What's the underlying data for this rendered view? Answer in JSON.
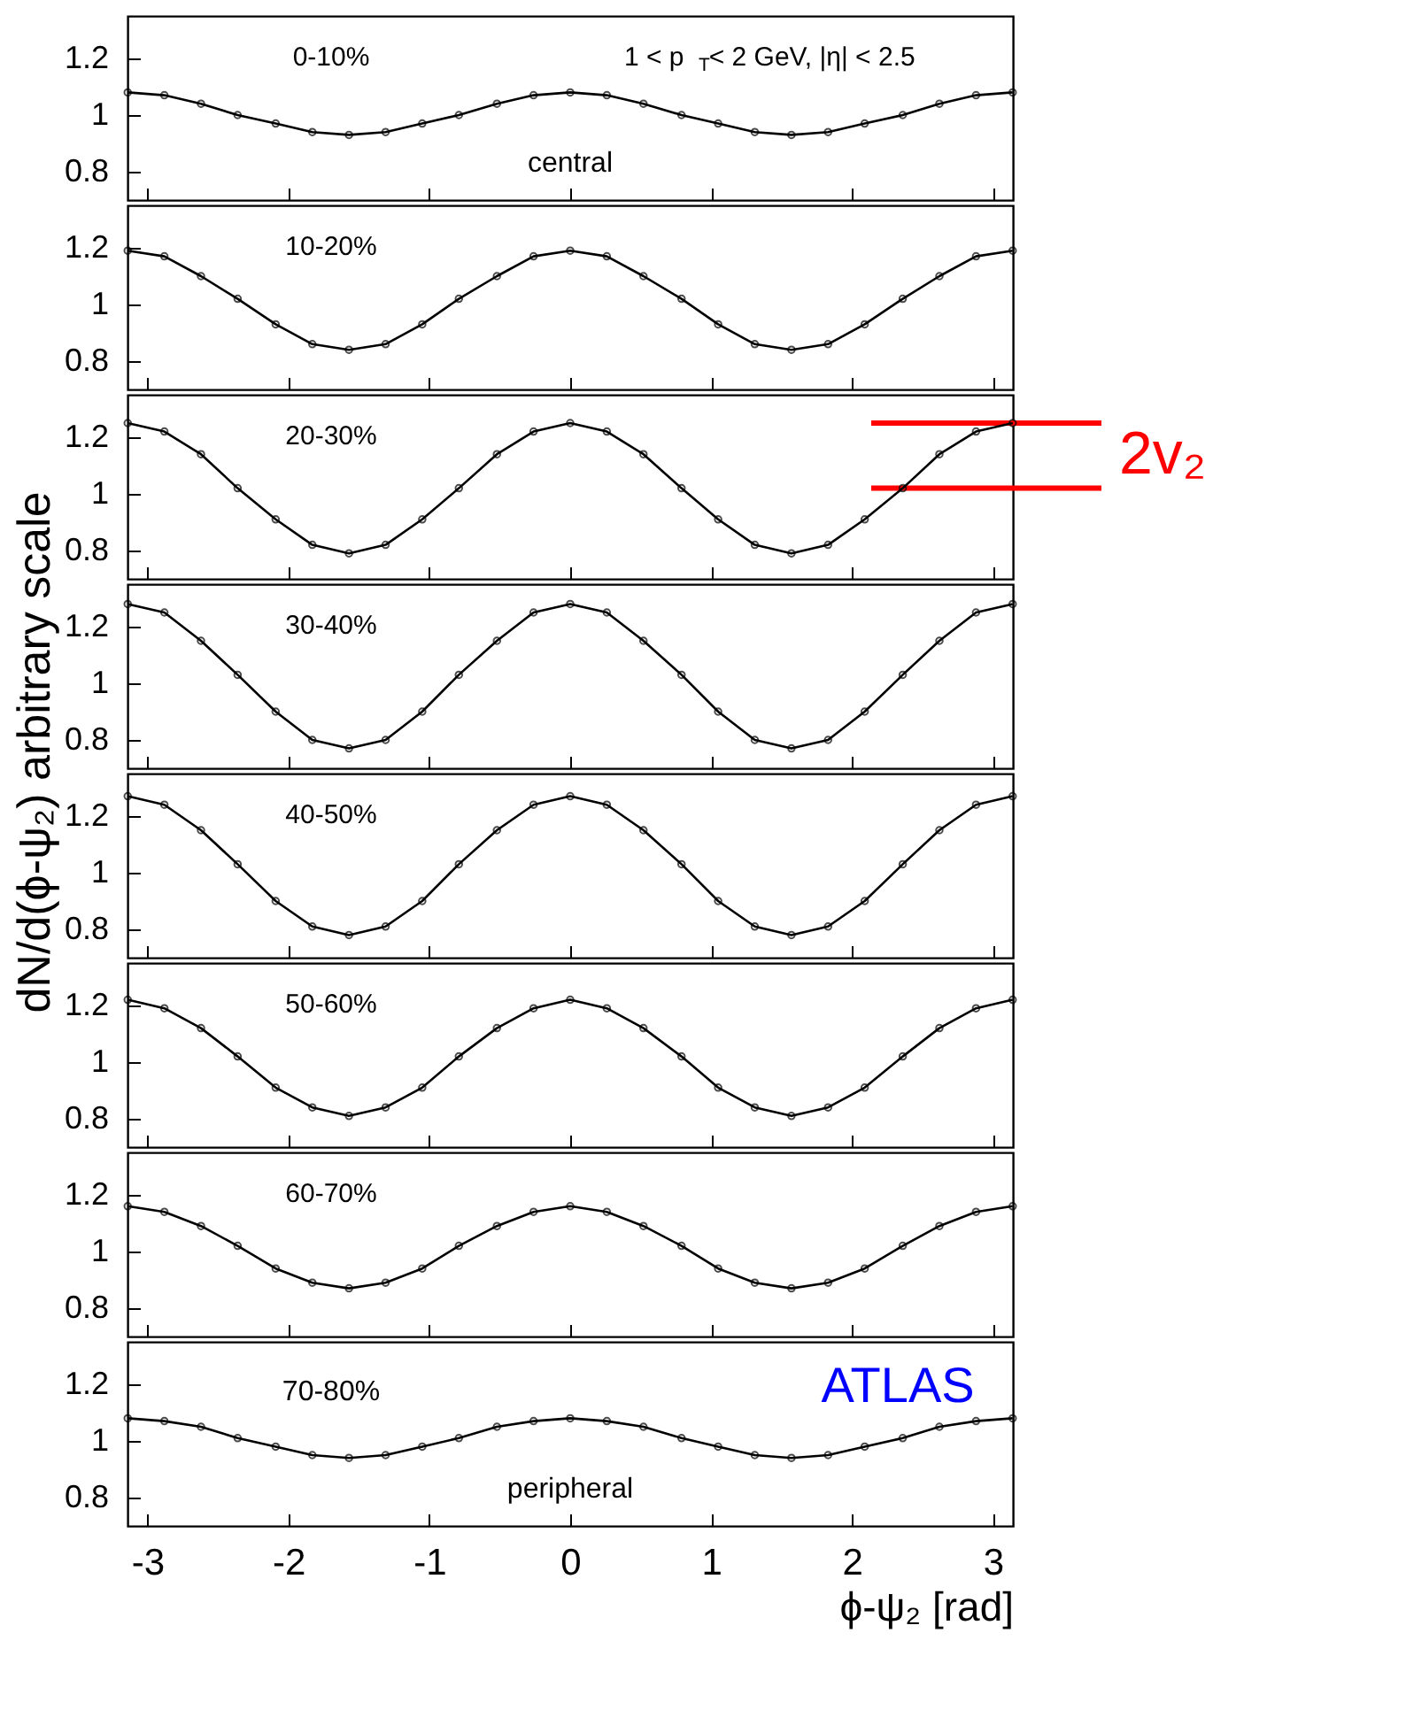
{
  "chart_data": [
    {
      "type": "line",
      "x": [
        -3.14,
        -2.88,
        -2.62,
        -2.36,
        -2.09,
        -1.83,
        -1.57,
        -1.31,
        -1.05,
        -0.79,
        -0.52,
        -0.26,
        0,
        0.26,
        0.52,
        0.79,
        1.05,
        1.31,
        1.57,
        1.83,
        2.09,
        2.36,
        2.62,
        2.88,
        3.14
      ],
      "series": [
        {
          "color": "#000000",
          "values": [
            1.08,
            1.07,
            1.04,
            1.0,
            0.97,
            0.94,
            0.93,
            0.94,
            0.97,
            1.0,
            1.04,
            1.07,
            1.08,
            1.07,
            1.04,
            1.0,
            0.97,
            0.94,
            0.93,
            0.94,
            0.97,
            1.0,
            1.04,
            1.07,
            1.08
          ]
        }
      ],
      "marker": "circle",
      "xlim": [
        -3.1416,
        3.1416
      ],
      "xticks": [
        -3,
        -2,
        -1,
        0,
        1,
        2,
        3
      ],
      "ylim": [
        0.7,
        1.35
      ],
      "yticks": [
        0.8,
        1,
        1.2
      ],
      "tick_labels": "y",
      "grid": false,
      "annotations": [
        "0-10%",
        "1 < p$_{T}$< 2 GeV, |η| < 2.5",
        "central"
      ]
    },
    {
      "type": "line",
      "x": [
        -3.14,
        -2.88,
        -2.62,
        -2.36,
        -2.09,
        -1.83,
        -1.57,
        -1.31,
        -1.05,
        -0.79,
        -0.52,
        -0.26,
        0,
        0.26,
        0.52,
        0.79,
        1.05,
        1.31,
        1.57,
        1.83,
        2.09,
        2.36,
        2.62,
        2.88,
        3.14
      ],
      "series": [
        {
          "color": "#000000",
          "values": [
            1.19,
            1.17,
            1.1,
            1.02,
            0.93,
            0.86,
            0.84,
            0.86,
            0.93,
            1.02,
            1.1,
            1.17,
            1.19,
            1.17,
            1.1,
            1.02,
            0.93,
            0.86,
            0.84,
            0.86,
            0.93,
            1.02,
            1.1,
            1.17,
            1.19
          ]
        }
      ],
      "marker": "circle",
      "xlim": [
        -3.1416,
        3.1416
      ],
      "xticks": [
        -3,
        -2,
        -1,
        0,
        1,
        2,
        3
      ],
      "ylim": [
        0.7,
        1.35
      ],
      "yticks": [
        0.8,
        1,
        1.2
      ],
      "tick_labels": "y",
      "grid": false,
      "annotations": [
        "10-20%"
      ]
    },
    {
      "type": "line",
      "x": [
        -3.14,
        -2.88,
        -2.62,
        -2.36,
        -2.09,
        -1.83,
        -1.57,
        -1.31,
        -1.05,
        -0.79,
        -0.52,
        -0.26,
        0,
        0.26,
        0.52,
        0.79,
        1.05,
        1.31,
        1.57,
        1.83,
        2.09,
        2.36,
        2.62,
        2.88,
        3.14
      ],
      "series": [
        {
          "color": "#000000",
          "values": [
            1.25,
            1.22,
            1.14,
            1.02,
            0.91,
            0.82,
            0.79,
            0.82,
            0.91,
            1.02,
            1.14,
            1.22,
            1.25,
            1.22,
            1.14,
            1.02,
            0.91,
            0.82,
            0.79,
            0.82,
            0.91,
            1.02,
            1.14,
            1.22,
            1.25
          ]
        }
      ],
      "marker": "circle",
      "xlim": [
        -3.1416,
        3.1416
      ],
      "xticks": [
        -3,
        -2,
        -1,
        0,
        1,
        2,
        3
      ],
      "ylim": [
        0.7,
        1.35
      ],
      "yticks": [
        0.8,
        1,
        1.2
      ],
      "tick_labels": "y",
      "grid": false,
      "ref_lines": [
        {
          "axis": "y",
          "value": 1.25,
          "label": "2v₂",
          "color": "#ff0000"
        },
        {
          "axis": "y",
          "value": 1.02,
          "color": "#ff0000"
        }
      ],
      "annotations": [
        "20-30%"
      ]
    },
    {
      "type": "line",
      "x": [
        -3.14,
        -2.88,
        -2.62,
        -2.36,
        -2.09,
        -1.83,
        -1.57,
        -1.31,
        -1.05,
        -0.79,
        -0.52,
        -0.26,
        0,
        0.26,
        0.52,
        0.79,
        1.05,
        1.31,
        1.57,
        1.83,
        2.09,
        2.36,
        2.62,
        2.88,
        3.14
      ],
      "series": [
        {
          "color": "#000000",
          "values": [
            1.28,
            1.25,
            1.15,
            1.03,
            0.9,
            0.8,
            0.77,
            0.8,
            0.9,
            1.03,
            1.15,
            1.25,
            1.28,
            1.25,
            1.15,
            1.03,
            0.9,
            0.8,
            0.77,
            0.8,
            0.9,
            1.03,
            1.15,
            1.25,
            1.28
          ]
        }
      ],
      "marker": "circle",
      "xlim": [
        -3.1416,
        3.1416
      ],
      "xticks": [
        -3,
        -2,
        -1,
        0,
        1,
        2,
        3
      ],
      "ylim": [
        0.7,
        1.35
      ],
      "yticks": [
        0.8,
        1,
        1.2
      ],
      "tick_labels": "y",
      "grid": false,
      "ylabel": "dN/d(ϕ-ψ₂) arbitrary scale",
      "annotations": [
        "30-40%"
      ]
    },
    {
      "type": "line",
      "x": [
        -3.14,
        -2.88,
        -2.62,
        -2.36,
        -2.09,
        -1.83,
        -1.57,
        -1.31,
        -1.05,
        -0.79,
        -0.52,
        -0.26,
        0,
        0.26,
        0.52,
        0.79,
        1.05,
        1.31,
        1.57,
        1.83,
        2.09,
        2.36,
        2.62,
        2.88,
        3.14
      ],
      "series": [
        {
          "color": "#000000",
          "values": [
            1.27,
            1.24,
            1.15,
            1.03,
            0.9,
            0.81,
            0.78,
            0.81,
            0.9,
            1.03,
            1.15,
            1.24,
            1.27,
            1.24,
            1.15,
            1.03,
            0.9,
            0.81,
            0.78,
            0.81,
            0.9,
            1.03,
            1.15,
            1.24,
            1.27
          ]
        }
      ],
      "marker": "circle",
      "xlim": [
        -3.1416,
        3.1416
      ],
      "xticks": [
        -3,
        -2,
        -1,
        0,
        1,
        2,
        3
      ],
      "ylim": [
        0.7,
        1.35
      ],
      "yticks": [
        0.8,
        1,
        1.2
      ],
      "tick_labels": "y",
      "grid": false,
      "annotations": [
        "40-50%"
      ]
    },
    {
      "type": "line",
      "x": [
        -3.14,
        -2.88,
        -2.62,
        -2.36,
        -2.09,
        -1.83,
        -1.57,
        -1.31,
        -1.05,
        -0.79,
        -0.52,
        -0.26,
        0,
        0.26,
        0.52,
        0.79,
        1.05,
        1.31,
        1.57,
        1.83,
        2.09,
        2.36,
        2.62,
        2.88,
        3.14
      ],
      "series": [
        {
          "color": "#000000",
          "values": [
            1.22,
            1.19,
            1.12,
            1.02,
            0.91,
            0.84,
            0.81,
            0.84,
            0.91,
            1.02,
            1.12,
            1.19,
            1.22,
            1.19,
            1.12,
            1.02,
            0.91,
            0.84,
            0.81,
            0.84,
            0.91,
            1.02,
            1.12,
            1.19,
            1.22
          ]
        }
      ],
      "marker": "circle",
      "xlim": [
        -3.1416,
        3.1416
      ],
      "xticks": [
        -3,
        -2,
        -1,
        0,
        1,
        2,
        3
      ],
      "ylim": [
        0.7,
        1.35
      ],
      "yticks": [
        0.8,
        1,
        1.2
      ],
      "tick_labels": "y",
      "grid": false,
      "annotations": [
        "50-60%"
      ]
    },
    {
      "type": "line",
      "x": [
        -3.14,
        -2.88,
        -2.62,
        -2.36,
        -2.09,
        -1.83,
        -1.57,
        -1.31,
        -1.05,
        -0.79,
        -0.52,
        -0.26,
        0,
        0.26,
        0.52,
        0.79,
        1.05,
        1.31,
        1.57,
        1.83,
        2.09,
        2.36,
        2.62,
        2.88,
        3.14
      ],
      "series": [
        {
          "color": "#000000",
          "values": [
            1.16,
            1.14,
            1.09,
            1.02,
            0.94,
            0.89,
            0.87,
            0.89,
            0.94,
            1.02,
            1.09,
            1.14,
            1.16,
            1.14,
            1.09,
            1.02,
            0.94,
            0.89,
            0.87,
            0.89,
            0.94,
            1.02,
            1.09,
            1.14,
            1.16
          ]
        }
      ],
      "marker": "circle",
      "xlim": [
        -3.1416,
        3.1416
      ],
      "xticks": [
        -3,
        -2,
        -1,
        0,
        1,
        2,
        3
      ],
      "ylim": [
        0.7,
        1.35
      ],
      "yticks": [
        0.8,
        1,
        1.2
      ],
      "tick_labels": "y",
      "grid": false,
      "annotations": [
        "60-70%"
      ]
    },
    {
      "type": "line",
      "x": [
        -3.14,
        -2.88,
        -2.62,
        -2.36,
        -2.09,
        -1.83,
        -1.57,
        -1.31,
        -1.05,
        -0.79,
        -0.52,
        -0.26,
        0,
        0.26,
        0.52,
        0.79,
        1.05,
        1.31,
        1.57,
        1.83,
        2.09,
        2.36,
        2.62,
        2.88,
        3.14
      ],
      "series": [
        {
          "color": "#000000",
          "values": [
            1.08,
            1.07,
            1.05,
            1.01,
            0.98,
            0.95,
            0.94,
            0.95,
            0.98,
            1.01,
            1.05,
            1.07,
            1.08,
            1.07,
            1.05,
            1.01,
            0.98,
            0.95,
            0.94,
            0.95,
            0.98,
            1.01,
            1.05,
            1.07,
            1.08
          ]
        }
      ],
      "marker": "circle",
      "xlim": [
        -3.1416,
        3.1416
      ],
      "xticks": [
        -3,
        -2,
        -1,
        0,
        1,
        2,
        3
      ],
      "ylim": [
        0.7,
        1.35
      ],
      "yticks": [
        0.8,
        1,
        1.2
      ],
      "grid": false,
      "xlabel": "ϕ-ψ₂ [rad]",
      "annotations": [
        "70-80%",
        "ATLAS",
        "peripheral"
      ]
    }
  ]
}
